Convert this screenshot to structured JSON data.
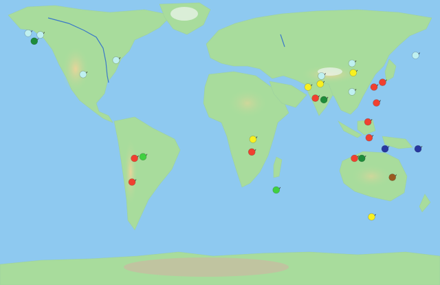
{
  "map": {
    "type": "world-physical-map",
    "ocean_color": "#8ec9f0",
    "land_color": "#a8dc9c",
    "highland_color": "#d8c98a",
    "ice_color": "#e6f2e6",
    "river_color": "#3b78c8"
  },
  "marker_colors": {
    "light-blue": "#bff0f0",
    "dark-green": "#1e8c3a",
    "bright-green": "#40d040",
    "red": "#f04030",
    "yellow": "#f8f020",
    "navy": "#2838a0",
    "brown": "#9a5a20"
  },
  "markers": [
    {
      "id": "alaska-1",
      "color": "light-blue",
      "lat": 69,
      "lon": -157
    },
    {
      "id": "alaska-2",
      "color": "light-blue",
      "lat": 68,
      "lon": -147
    },
    {
      "id": "alaska-3",
      "color": "dark-green",
      "lat": 64,
      "lon": -152
    },
    {
      "id": "canada-east",
      "color": "light-blue",
      "lat": 52,
      "lon": -85
    },
    {
      "id": "usa-west",
      "color": "light-blue",
      "lat": 43,
      "lon": -112
    },
    {
      "id": "amazon-red",
      "color": "red",
      "lat": -10,
      "lon": -70
    },
    {
      "id": "amazon-green",
      "color": "bright-green",
      "lat": -9,
      "lon": -63
    },
    {
      "id": "peru-coast",
      "color": "red",
      "lat": -25,
      "lon": -72
    },
    {
      "id": "congo-yellow",
      "color": "yellow",
      "lat": 2,
      "lon": 27
    },
    {
      "id": "congo-red",
      "color": "red",
      "lat": -6,
      "lon": 26
    },
    {
      "id": "madagascar",
      "color": "bright-green",
      "lat": -30,
      "lon": 46
    },
    {
      "id": "siberia-east",
      "color": "light-blue",
      "lat": 55,
      "lon": 160
    },
    {
      "id": "mongolia-1",
      "color": "light-blue",
      "lat": 50,
      "lon": 108
    },
    {
      "id": "mongolia-2",
      "color": "yellow",
      "lat": 44,
      "lon": 109
    },
    {
      "id": "central-asia",
      "color": "light-blue",
      "lat": 42,
      "lon": 83
    },
    {
      "id": "afghanistan",
      "color": "yellow",
      "lat": 35,
      "lon": 72
    },
    {
      "id": "tibet-yellow",
      "color": "yellow",
      "lat": 37,
      "lon": 82
    },
    {
      "id": "tibet-red",
      "color": "red",
      "lat": 28,
      "lon": 78
    },
    {
      "id": "himalaya-green",
      "color": "dark-green",
      "lat": 27,
      "lon": 85
    },
    {
      "id": "china-south",
      "color": "light-blue",
      "lat": 32,
      "lon": 108
    },
    {
      "id": "korea-1",
      "color": "red",
      "lat": 35,
      "lon": 126
    },
    {
      "id": "korea-2",
      "color": "red",
      "lat": 38,
      "lon": 133
    },
    {
      "id": "taiwan",
      "color": "red",
      "lat": 25,
      "lon": 128
    },
    {
      "id": "vietnam",
      "color": "red",
      "lat": 13,
      "lon": 121
    },
    {
      "id": "philippines",
      "color": "red",
      "lat": 3,
      "lon": 122
    },
    {
      "id": "sumatra",
      "color": "red",
      "lat": -10,
      "lon": 110
    },
    {
      "id": "borneo",
      "color": "dark-green",
      "lat": -10,
      "lon": 116
    },
    {
      "id": "micronesia-1",
      "color": "navy",
      "lat": -4,
      "lon": 135
    },
    {
      "id": "micronesia-2",
      "color": "navy",
      "lat": -4,
      "lon": 162
    },
    {
      "id": "new-guinea",
      "color": "brown",
      "lat": -22,
      "lon": 141
    },
    {
      "id": "australia",
      "color": "yellow",
      "lat": -47,
      "lon": 124
    }
  ]
}
